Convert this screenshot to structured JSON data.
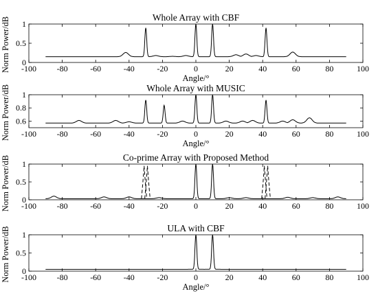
{
  "chart_data": [
    {
      "type": "line",
      "title": "Whole Array with CBF",
      "xlabel": "Angle/°",
      "ylabel": "Norm Power/dB",
      "xlim": [
        -100,
        100
      ],
      "ylim": [
        0,
        1
      ],
      "xticks": [
        -100,
        -80,
        -60,
        -40,
        -20,
        0,
        20,
        40,
        60,
        80,
        100
      ],
      "yticks": [
        0,
        0.5,
        1
      ],
      "grid": false,
      "baseline": 0.15,
      "series": [
        {
          "style": "solid",
          "peaks": [
            {
              "x": -30,
              "y": 0.9
            },
            {
              "x": 0,
              "y": 1.0
            },
            {
              "x": 10,
              "y": 1.0
            },
            {
              "x": 42,
              "y": 0.9
            },
            {
              "x": -42,
              "y": 0.26
            },
            {
              "x": 58,
              "y": 0.27
            },
            {
              "x": -6,
              "y": 0.18
            },
            {
              "x": -14,
              "y": 0.16
            },
            {
              "x": 24,
              "y": 0.2
            },
            {
              "x": 30,
              "y": 0.22
            },
            {
              "x": 36,
              "y": 0.18
            },
            {
              "x": -24,
              "y": 0.18
            },
            {
              "x": -60,
              "y": 0.14
            }
          ]
        }
      ]
    },
    {
      "type": "line",
      "title": "Whole Array with MUSIC",
      "xlabel": "Angle/°",
      "ylabel": "Norm Power/dB",
      "xlim": [
        -100,
        100
      ],
      "ylim": [
        0.5,
        1
      ],
      "xticks": [
        -100,
        -80,
        -60,
        -40,
        -20,
        0,
        20,
        40,
        60,
        80,
        100
      ],
      "yticks": [
        0.6,
        0.8,
        1
      ],
      "grid": false,
      "baseline": 0.57,
      "series": [
        {
          "style": "solid",
          "peaks": [
            {
              "x": -30,
              "y": 0.92
            },
            {
              "x": 0,
              "y": 1.0
            },
            {
              "x": 10,
              "y": 1.0
            },
            {
              "x": 42,
              "y": 0.92
            },
            {
              "x": -19,
              "y": 0.84
            },
            {
              "x": 68,
              "y": 0.65
            },
            {
              "x": -70,
              "y": 0.61
            },
            {
              "x": -48,
              "y": 0.61
            },
            {
              "x": -40,
              "y": 0.59
            },
            {
              "x": 58,
              "y": 0.62
            },
            {
              "x": 52,
              "y": 0.6
            },
            {
              "x": 28,
              "y": 0.6
            },
            {
              "x": 34,
              "y": 0.61
            },
            {
              "x": -8,
              "y": 0.6
            },
            {
              "x": 18,
              "y": 0.6
            }
          ]
        }
      ]
    },
    {
      "type": "line",
      "title": "Co-prime Array with Proposed Method",
      "xlabel": "",
      "ylabel": "Norm Power/dB",
      "xlim": [
        -100,
        100
      ],
      "ylim": [
        0,
        1
      ],
      "xticks": [
        -100,
        -80,
        -60,
        -40,
        -20,
        0,
        20,
        40,
        60,
        80,
        100
      ],
      "yticks": [
        0,
        0.5,
        1
      ],
      "grid": false,
      "baseline": 0.03,
      "series": [
        {
          "style": "solid",
          "peaks": [
            {
              "x": 0,
              "y": 1.0
            },
            {
              "x": 10,
              "y": 1.0
            },
            {
              "x": -85,
              "y": 0.1
            },
            {
              "x": 85,
              "y": 0.08
            },
            {
              "x": -55,
              "y": 0.08
            },
            {
              "x": -40,
              "y": 0.08
            },
            {
              "x": -22,
              "y": 0.06
            },
            {
              "x": 20,
              "y": 0.06
            },
            {
              "x": 30,
              "y": 0.06
            },
            {
              "x": 55,
              "y": 0.07
            },
            {
              "x": 70,
              "y": 0.06
            }
          ]
        },
        {
          "style": "dashed",
          "peaks": [
            {
              "x": -31,
              "y": 0.95
            },
            {
              "x": -29,
              "y": 0.95
            },
            {
              "x": 41,
              "y": 0.95
            },
            {
              "x": 43,
              "y": 0.95
            }
          ]
        }
      ]
    },
    {
      "type": "line",
      "title": "ULA with CBF",
      "xlabel": "Angle/°",
      "ylabel": "Norm Power/dB",
      "xlim": [
        -100,
        100
      ],
      "ylim": [
        0,
        1
      ],
      "xticks": [
        -100,
        -80,
        -60,
        -40,
        -20,
        0,
        20,
        40,
        60,
        80,
        100
      ],
      "yticks": [
        0,
        0.5,
        1
      ],
      "grid": false,
      "baseline": 0.05,
      "series": [
        {
          "style": "solid",
          "peaks": [
            {
              "x": 0,
              "y": 1.0
            },
            {
              "x": 10,
              "y": 1.0
            }
          ]
        }
      ]
    }
  ]
}
